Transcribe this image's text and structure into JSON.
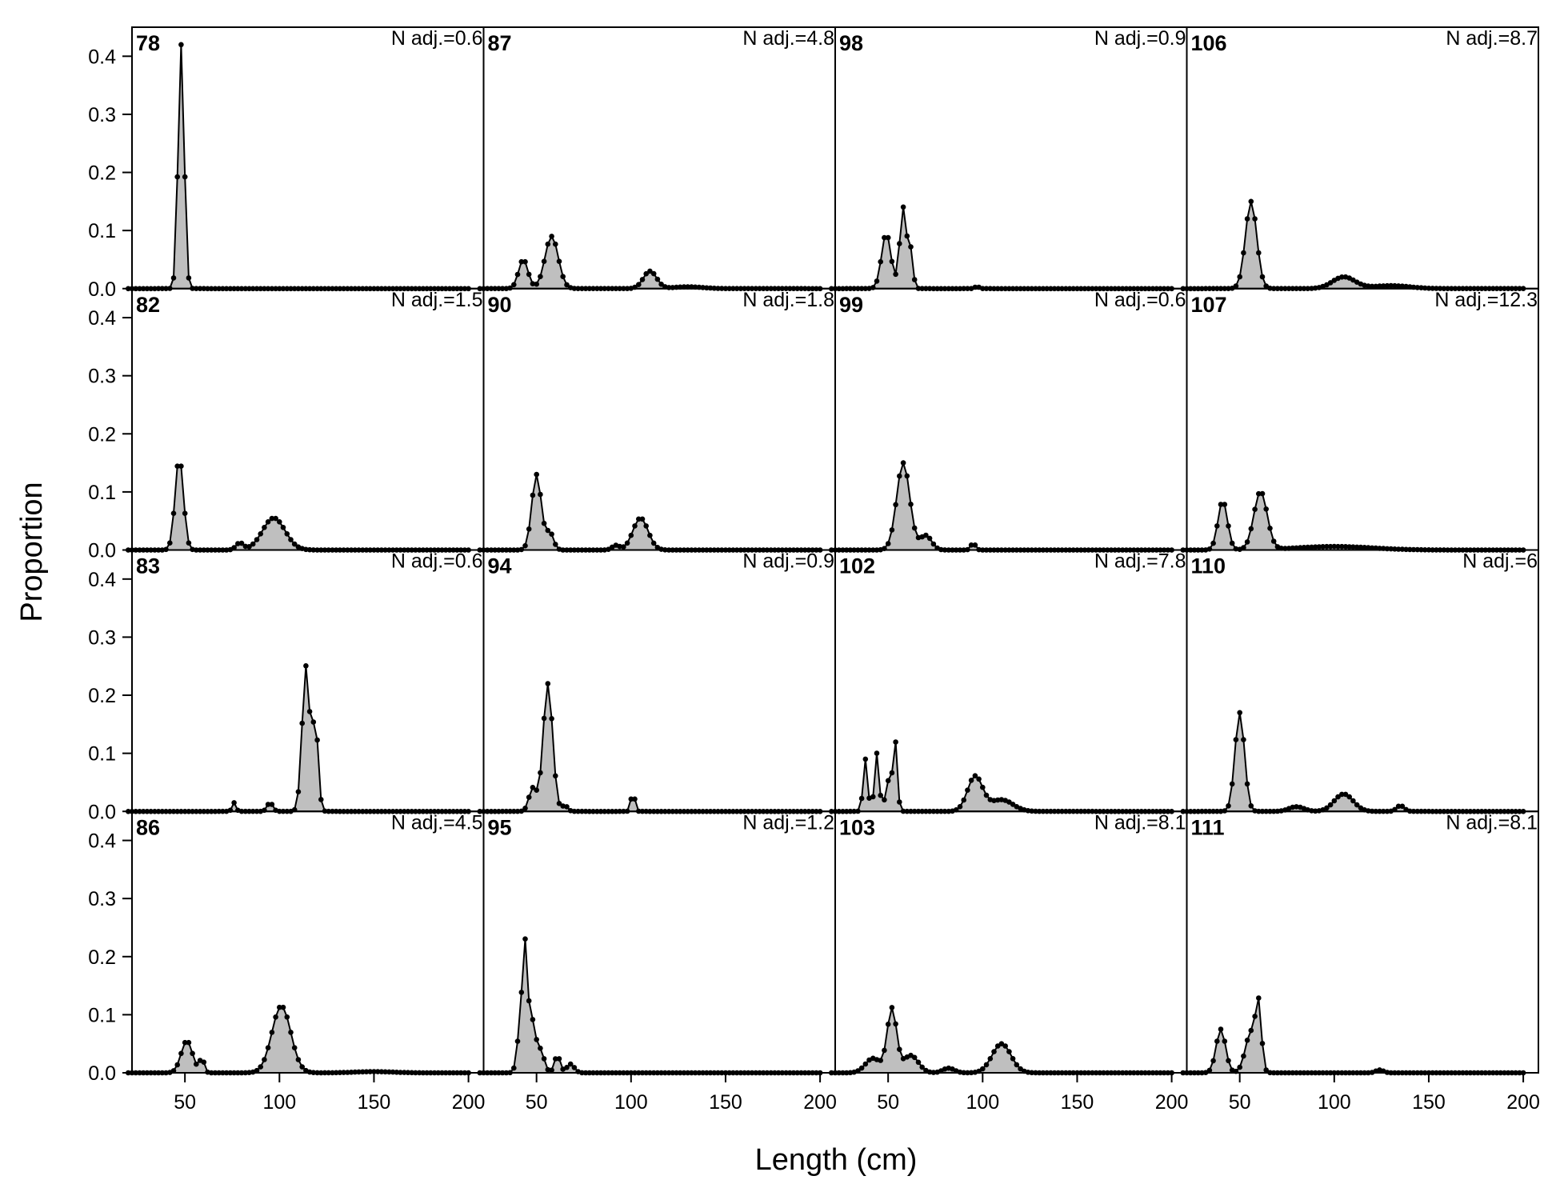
{
  "chart_data": {
    "type": "area",
    "xlabel": "Length (cm)",
    "ylabel": "Proportion",
    "xlim": [
      22,
      208
    ],
    "ylim": [
      0,
      0.45
    ],
    "x_ticks": [
      50,
      100,
      150,
      200
    ],
    "y_ticks": [
      0.0,
      0.1,
      0.2,
      0.3,
      0.4
    ],
    "x_tick_labels": [
      "50",
      "100",
      "150",
      "200"
    ],
    "y_tick_labels": [
      "0.0",
      "0.1",
      "0.2",
      "0.3",
      "0.4"
    ],
    "x_range": [
      20,
      200
    ],
    "grid": false,
    "layout": "4 rows x 4 columns",
    "fill_color": "#bfbfbf",
    "line_color": "#000000",
    "panels": [
      {
        "id": "78",
        "n_adj": "N adj.=0.6",
        "peaks": [
          [
            48,
            0.42,
            1.6
          ]
        ]
      },
      {
        "id": "87",
        "n_adj": "N adj.=4.8",
        "peaks": [
          [
            43,
            0.05,
            2.5
          ],
          [
            58,
            0.09,
            3.5
          ],
          [
            110,
            0.03,
            3.5
          ],
          [
            130,
            0.003,
            8
          ]
        ]
      },
      {
        "id": "98",
        "n_adj": "N adj.=0.9",
        "peaks": [
          [
            49,
            0.095,
            2.5
          ],
          [
            58,
            0.14,
            1.8
          ],
          [
            62,
            0.06,
            1.2
          ],
          [
            97,
            0.004,
            1
          ]
        ]
      },
      {
        "id": "106",
        "n_adj": "N adj.=8.7",
        "peaks": [
          [
            56,
            0.15,
            3
          ],
          [
            105,
            0.02,
            6
          ],
          [
            130,
            0.005,
            10
          ]
        ]
      },
      {
        "id": "82",
        "n_adj": "N adj.=1.5",
        "peaks": [
          [
            47,
            0.16,
            2.2
          ],
          [
            97,
            0.055,
            6
          ],
          [
            79,
            0.012,
            2
          ]
        ]
      },
      {
        "id": "90",
        "n_adj": "N adj.=1.8",
        "peaks": [
          [
            50,
            0.13,
            2.5
          ],
          [
            57,
            0.03,
            2
          ],
          [
            105,
            0.055,
            4
          ],
          [
            92,
            0.008,
            2
          ]
        ]
      },
      {
        "id": "99",
        "n_adj": "N adj.=0.6",
        "peaks": [
          [
            58,
            0.15,
            3.5
          ],
          [
            70,
            0.025,
            3
          ],
          [
            95,
            0.012,
            1.2
          ]
        ]
      },
      {
        "id": "107",
        "n_adj": "N adj.=12.3",
        "peaks": [
          [
            41,
            0.085,
            2.5
          ],
          [
            61,
            0.1,
            3.5
          ],
          [
            100,
            0.006,
            20
          ]
        ]
      },
      {
        "id": "83",
        "n_adj": "N adj.=0.6",
        "peaks": [
          [
            114,
            0.25,
            2
          ],
          [
            119,
            0.15,
            1.5
          ],
          [
            76,
            0.015,
            1
          ],
          [
            95,
            0.015,
            1.5
          ]
        ]
      },
      {
        "id": "94",
        "n_adj": "N adj.=0.9",
        "peaks": [
          [
            56,
            0.22,
            2.5
          ],
          [
            48,
            0.04,
            2
          ],
          [
            101,
            0.035,
            1
          ],
          [
            65,
            0.01,
            1.5
          ]
        ]
      },
      {
        "id": "102",
        "n_adj": "N adj.=7.8",
        "peaks": [
          [
            38,
            0.09,
            1.2
          ],
          [
            44,
            0.1,
            1.2
          ],
          [
            51,
            0.06,
            2
          ],
          [
            54,
            0.1,
            1
          ],
          [
            96,
            0.06,
            4
          ],
          [
            110,
            0.02,
            6
          ]
        ]
      },
      {
        "id": "110",
        "n_adj": "N adj.=6",
        "peaks": [
          [
            50,
            0.17,
            2.5
          ],
          [
            105,
            0.03,
            5
          ],
          [
            80,
            0.008,
            4
          ],
          [
            135,
            0.01,
            2
          ]
        ]
      },
      {
        "id": "86",
        "n_adj": "N adj.=4.5",
        "peaks": [
          [
            51,
            0.055,
            3
          ],
          [
            59,
            0.025,
            1.2
          ],
          [
            101,
            0.115,
            5
          ],
          [
            150,
            0.002,
            10
          ]
        ]
      },
      {
        "id": "95",
        "n_adj": "N adj.=1.2",
        "peaks": [
          [
            44,
            0.22,
            1.5
          ],
          [
            48,
            0.08,
            1.5
          ],
          [
            41,
            0.06,
            1.5
          ],
          [
            52,
            0.04,
            2
          ],
          [
            61,
            0.03,
            1.5
          ],
          [
            68,
            0.015,
            2
          ]
        ]
      },
      {
        "id": "103",
        "n_adj": "N adj.=8.1",
        "peaks": [
          [
            52,
            0.11,
            2.5
          ],
          [
            42,
            0.025,
            4
          ],
          [
            62,
            0.03,
            4
          ],
          [
            110,
            0.05,
            5
          ],
          [
            82,
            0.008,
            3
          ]
        ]
      },
      {
        "id": "111",
        "n_adj": "N adj.=8.1",
        "peaks": [
          [
            40,
            0.075,
            2.5
          ],
          [
            56,
            0.07,
            3
          ],
          [
            60,
            0.1,
            1.5
          ],
          [
            124,
            0.005,
            2
          ]
        ]
      }
    ]
  }
}
